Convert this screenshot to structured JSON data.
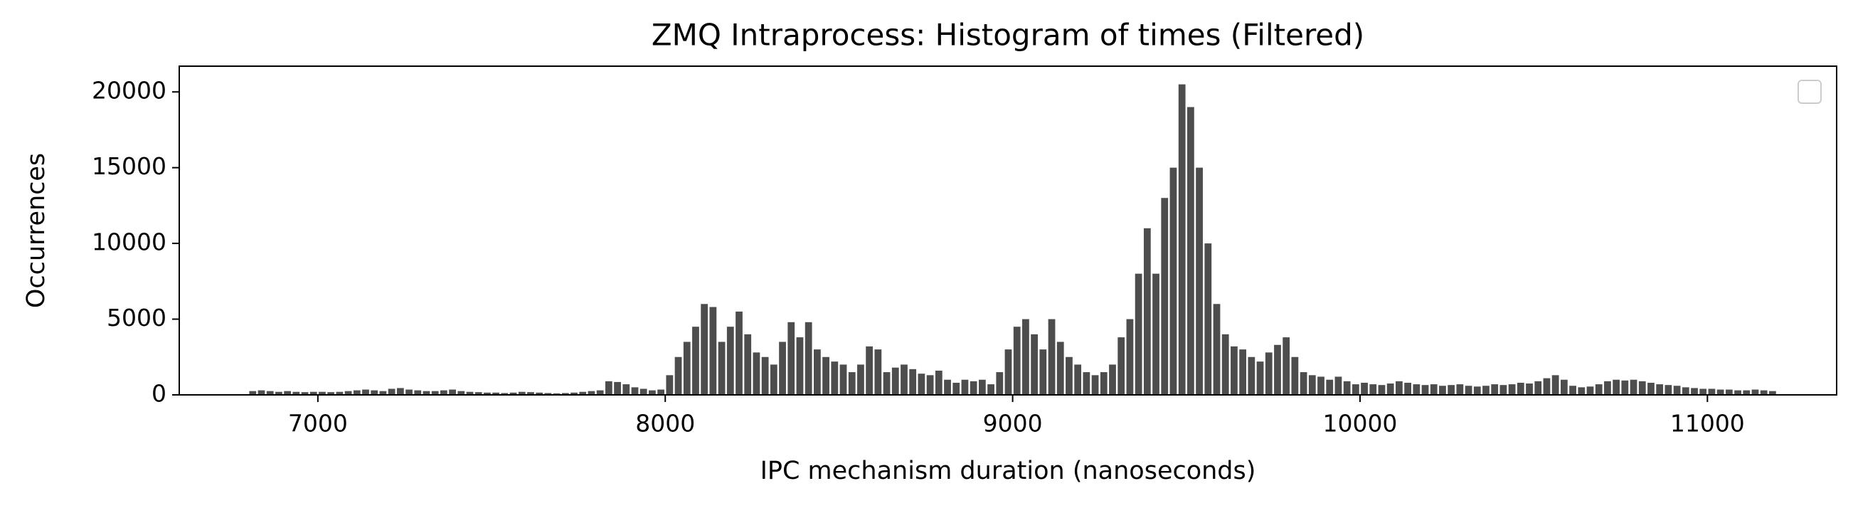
{
  "chart_data": {
    "type": "histogram",
    "title": "ZMQ Intraprocess: Histogram of times (Filtered)",
    "x_label": "IPC mechanism duration (nanoseconds)",
    "y_label": "Occurrences",
    "color": "#3a3a3a",
    "bins": [
      6800,
      6825,
      6850,
      6875,
      6900,
      6925,
      6950,
      6975,
      7000,
      7025,
      7050,
      7075,
      7100,
      7125,
      7150,
      7175,
      7200,
      7225,
      7250,
      7275,
      7300,
      7325,
      7350,
      7375,
      7400,
      7425,
      7450,
      7475,
      7500,
      7525,
      7550,
      7575,
      7600,
      7625,
      7650,
      7675,
      7700,
      7725,
      7750,
      7775,
      7800,
      7825,
      7850,
      7875,
      7900,
      7925,
      7950,
      7975,
      8000,
      8025,
      8050,
      8075,
      8100,
      8125,
      8150,
      8175,
      8200,
      8225,
      8250,
      8275,
      8300,
      8325,
      8350,
      8375,
      8400,
      8425,
      8450,
      8475,
      8500,
      8525,
      8550,
      8575,
      8600,
      8625,
      8650,
      8675,
      8700,
      8725,
      8750,
      8775,
      8800,
      8825,
      8850,
      8875,
      8900,
      8925,
      8950,
      8975,
      9000,
      9025,
      9050,
      9075,
      9100,
      9125,
      9150,
      9175,
      9200,
      9225,
      9250,
      9275,
      9300,
      9325,
      9350,
      9375,
      9400,
      9425,
      9450,
      9475,
      9500,
      9525,
      9550,
      9575,
      9600,
      9625,
      9650,
      9675,
      9700,
      9725,
      9750,
      9775,
      9800,
      9825,
      9850,
      9875,
      9900,
      9925,
      9950,
      9975,
      10000,
      10025,
      10050,
      10075,
      10100,
      10125,
      10150,
      10175,
      10200,
      10225,
      10250,
      10275,
      10300,
      10325,
      10350,
      10375,
      10400,
      10425,
      10450,
      10475,
      10500,
      10525,
      10550,
      10575,
      10600,
      10625,
      10650,
      10675,
      10700,
      10725,
      10750,
      10775,
      10800,
      10825,
      10850,
      10875,
      10900,
      10925,
      10950,
      10975,
      11000,
      11025,
      11050,
      11075,
      11100,
      11125,
      11150,
      11175,
      11200
    ],
    "counts": [
      250,
      300,
      250,
      200,
      250,
      200,
      180,
      200,
      200,
      180,
      200,
      250,
      300,
      350,
      300,
      250,
      400,
      450,
      350,
      300,
      250,
      250,
      300,
      350,
      250,
      200,
      180,
      150,
      150,
      120,
      150,
      200,
      180,
      150,
      120,
      100,
      120,
      150,
      200,
      250,
      300,
      900,
      850,
      700,
      500,
      400,
      300,
      350,
      1300,
      2500,
      3500,
      4500,
      6000,
      5800,
      3500,
      4500,
      5500,
      4000,
      2800,
      2500,
      2000,
      3500,
      4800,
      3800,
      4800,
      3000,
      2500,
      2200,
      2000,
      1500,
      2000,
      3200,
      3000,
      1500,
      1800,
      2000,
      1700,
      1400,
      1300,
      1600,
      1000,
      800,
      1000,
      900,
      1000,
      700,
      1500,
      3000,
      4500,
      5000,
      4000,
      3000,
      5000,
      3500,
      2500,
      2000,
      1500,
      1300,
      1500,
      2000,
      3800,
      5000,
      8000,
      11000,
      8000,
      13000,
      15000,
      20500,
      19000,
      15000,
      10000,
      6000,
      4000,
      3200,
      3000,
      2500,
      2200,
      2800,
      3300,
      3800,
      2500,
      1500,
      1300,
      1200,
      1000,
      1200,
      900,
      700,
      800,
      700,
      650,
      750,
      900,
      800,
      700,
      650,
      700,
      600,
      650,
      700,
      600,
      550,
      600,
      700,
      650,
      700,
      800,
      750,
      900,
      1100,
      1300,
      1000,
      600,
      500,
      550,
      700,
      900,
      1000,
      950,
      1000,
      900,
      800,
      700,
      650,
      600,
      500,
      450,
      400,
      400,
      350,
      350,
      300,
      300,
      350,
      300,
      250
    ],
    "xlim": [
      6601,
      11372
    ],
    "xticks": [
      7000,
      8000,
      9000,
      10000,
      11000
    ],
    "ylim": [
      0,
      21700
    ],
    "yticks": [
      0,
      5000,
      10000,
      15000,
      20000
    ]
  }
}
